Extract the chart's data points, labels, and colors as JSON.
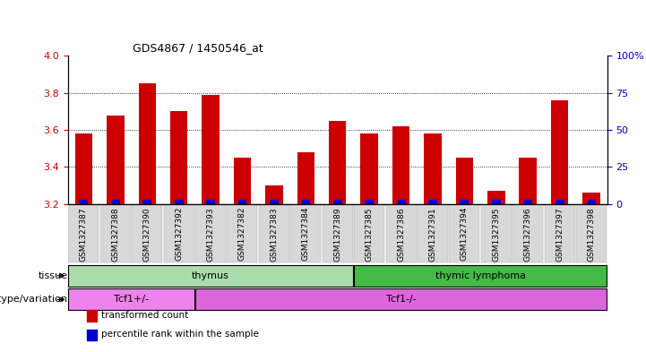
{
  "title": "GDS4867 / 1450546_at",
  "samples": [
    "GSM1327387",
    "GSM1327388",
    "GSM1327390",
    "GSM1327392",
    "GSM1327393",
    "GSM1327382",
    "GSM1327383",
    "GSM1327384",
    "GSM1327389",
    "GSM1327385",
    "GSM1327386",
    "GSM1327391",
    "GSM1327394",
    "GSM1327395",
    "GSM1327396",
    "GSM1327397",
    "GSM1327398"
  ],
  "transformed_count": [
    3.58,
    3.68,
    3.85,
    3.7,
    3.79,
    3.45,
    3.3,
    3.48,
    3.65,
    3.58,
    3.62,
    3.58,
    3.45,
    3.27,
    3.45,
    3.76,
    3.26
  ],
  "base": 3.2,
  "ylim_left": [
    3.2,
    4.0
  ],
  "ylim_right": [
    0,
    100
  ],
  "yticks_left": [
    3.2,
    3.4,
    3.6,
    3.8,
    4.0
  ],
  "yticks_right": [
    0,
    25,
    50,
    75,
    100
  ],
  "bar_color_red": "#cc0000",
  "bar_color_blue": "#0000cc",
  "bar_width": 0.55,
  "blue_bar_width": 0.28,
  "blue_bar_height": 0.022,
  "tissue_labels": [
    {
      "text": "thymus",
      "start": 0,
      "end": 8,
      "color": "#aaddaa"
    },
    {
      "text": "thymic lymphoma",
      "start": 9,
      "end": 16,
      "color": "#44bb44"
    }
  ],
  "genotype_labels": [
    {
      "text": "Tcf1+/-",
      "start": 0,
      "end": 3,
      "color": "#ee82ee"
    },
    {
      "text": "Tcf1-/-",
      "start": 4,
      "end": 16,
      "color": "#dd66dd"
    }
  ],
  "legend_items": [
    {
      "color": "#cc0000",
      "label": "transformed count"
    },
    {
      "color": "#0000cc",
      "label": "percentile rank within the sample"
    }
  ],
  "ylabel_left_color": "#cc0000",
  "ylabel_right_color": "#0000cc",
  "background_color": "#ffffff",
  "xtick_bg": "#d8d8d8"
}
